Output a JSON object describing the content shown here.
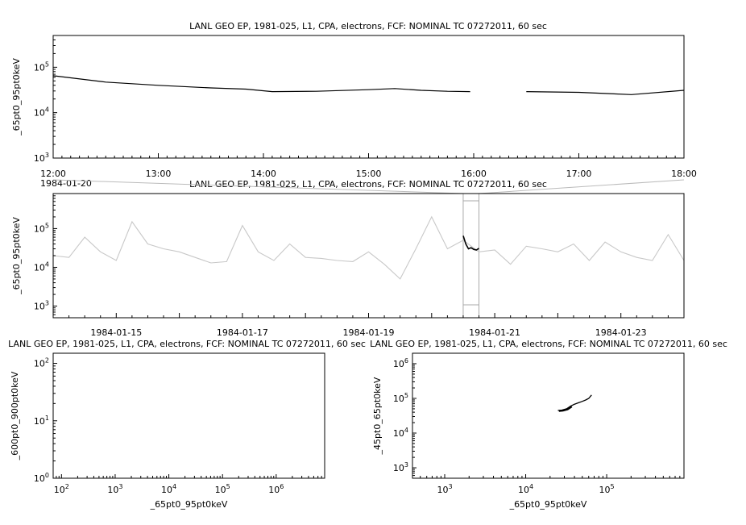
{
  "chart_data": [
    {
      "id": "top",
      "type": "line",
      "title": "LANL GEO EP, 1981-025, L1, CPA, electrons, FCF: NOMINAL TC 07272011, 60 sec",
      "ylabel": "_65pt0_95pt0keV",
      "xlabel": "",
      "yscale": "log",
      "ylim": [
        1000,
        500000
      ],
      "y_tick_labels": [
        "10^3",
        "10^4",
        "10^5"
      ],
      "xlim": [
        "1984-01-20T12:00",
        "1984-01-20T18:00"
      ],
      "x_tick_labels": [
        "12:00",
        "13:00",
        "14:00",
        "15:00",
        "16:00",
        "17:00",
        "18:00"
      ],
      "x_date_label": "1984-01-20",
      "grid": false,
      "series": [
        {
          "color": "#000000",
          "x": [
            "1984-01-20T12:00",
            "1984-01-20T12:30",
            "1984-01-20T13:00",
            "1984-01-20T13:30",
            "1984-01-20T13:50",
            "1984-01-20T14:05",
            "1984-01-20T14:30",
            "1984-01-20T15:00",
            "1984-01-20T15:15",
            "1984-01-20T15:30",
            "1984-01-20T15:45",
            "1984-01-20T15:58",
            "1984-01-20T16:00",
            "1984-01-20T16:30",
            "1984-01-20T17:00",
            "1984-01-20T17:30",
            "1984-01-20T18:00"
          ],
          "y": [
            65000,
            47000,
            40000,
            35000,
            33000,
            29000,
            29500,
            32000,
            34000,
            31000,
            29500,
            29000,
            null,
            29000,
            28000,
            25000,
            31000
          ]
        }
      ]
    },
    {
      "id": "middle",
      "type": "line",
      "title": "LANL GEO EP, 1981-025, L1, CPA, electrons, FCF: NOMINAL TC 07272011, 60 sec",
      "ylabel": "_65pt0_95pt0keV",
      "xlabel": "",
      "yscale": "log",
      "ylim": [
        500,
        800000
      ],
      "y_tick_labels": [
        "10^3",
        "10^4",
        "10^5"
      ],
      "xlim": [
        "1984-01-14",
        "1984-01-24"
      ],
      "x_tick_labels": [
        "1984-01-15",
        "1984-01-17",
        "1984-01-19",
        "1984-01-21",
        "1984-01-23"
      ],
      "highlight_window": [
        "1984-01-20T12:00",
        "1984-01-20T18:00"
      ],
      "grid": false,
      "series": [
        {
          "color": "#c8c8c8",
          "x": [
            "1984-01-14T00:00",
            "1984-01-14T06:00",
            "1984-01-14T12:00",
            "1984-01-14T18:00",
            "1984-01-15T00:00",
            "1984-01-15T06:00",
            "1984-01-15T12:00",
            "1984-01-15T18:00",
            "1984-01-16T00:00",
            "1984-01-16T06:00",
            "1984-01-16T12:00",
            "1984-01-16T18:00",
            "1984-01-17T00:00",
            "1984-01-17T06:00",
            "1984-01-17T12:00",
            "1984-01-17T18:00",
            "1984-01-18T00:00",
            "1984-01-18T06:00",
            "1984-01-18T12:00",
            "1984-01-18T18:00",
            "1984-01-19T00:00",
            "1984-01-19T06:00",
            "1984-01-19T12:00",
            "1984-01-19T18:00",
            "1984-01-20T00:00",
            "1984-01-20T06:00",
            "1984-01-20T12:00",
            "1984-01-20T18:00",
            "1984-01-21T00:00",
            "1984-01-21T06:00",
            "1984-01-21T12:00",
            "1984-01-21T18:00",
            "1984-01-22T00:00",
            "1984-01-22T06:00",
            "1984-01-22T12:00",
            "1984-01-22T18:00",
            "1984-01-23T00:00",
            "1984-01-23T06:00",
            "1984-01-23T12:00",
            "1984-01-23T18:00",
            "1984-01-24T00:00"
          ],
          "y": [
            20000,
            18000,
            60000,
            25000,
            15000,
            150000,
            40000,
            30000,
            25000,
            18000,
            13000,
            14000,
            120000,
            25000,
            15000,
            40000,
            18000,
            17000,
            15000,
            14000,
            25000,
            12000,
            5000,
            30000,
            200000,
            30000,
            50000,
            25000,
            28000,
            12000,
            35000,
            30000,
            25000,
            40000,
            15000,
            45000,
            25000,
            18000,
            15000,
            70000,
            15000
          ]
        },
        {
          "color": "#000000",
          "x": [
            "1984-01-20T12:00",
            "1984-01-20T13:00",
            "1984-01-20T14:00",
            "1984-01-20T15:00",
            "1984-01-20T16:00",
            "1984-01-20T17:00",
            "1984-01-20T18:00"
          ],
          "y": [
            65000,
            40000,
            30000,
            32000,
            29000,
            28000,
            31000
          ]
        }
      ]
    },
    {
      "id": "bottom-left",
      "type": "scatter",
      "title": "LANL GEO EP, 1981-025, L1, CPA, electrons, FCF: NOMINAL TC 07272011, 60 sec",
      "xlabel": "_65pt0_95pt0keV",
      "ylabel": "_600pt0_900pt0keV",
      "xscale": "log",
      "yscale": "log",
      "xlim": [
        70,
        8000000
      ],
      "ylim": [
        1,
        150
      ],
      "x_tick_labels": [
        "10^2",
        "10^3",
        "10^4",
        "10^5",
        "10^6"
      ],
      "y_tick_labels": [
        "10^0",
        "10^1",
        "10^2"
      ],
      "grid": false,
      "series": []
    },
    {
      "id": "bottom-right",
      "type": "line",
      "title": "LANL GEO EP, 1981-025, L1, CPA, electrons, FCF: NOMINAL TC 07272011, 60 sec",
      "xlabel": "_65pt0_95pt0keV",
      "ylabel": "_45pt0_65pt0keV",
      "xscale": "log",
      "yscale": "log",
      "xlim": [
        400,
        900000
      ],
      "ylim": [
        500,
        2000000
      ],
      "x_tick_labels": [
        "10^3",
        "10^4",
        "10^5"
      ],
      "y_tick_labels": [
        "10^3",
        "10^4",
        "10^5",
        "10^6"
      ],
      "grid": false,
      "series": [
        {
          "color": "#000000",
          "x": [
            25000,
            28000,
            32000,
            36000,
            40000,
            45000,
            50000,
            55000,
            60000,
            65000
          ],
          "y": [
            45000,
            46000,
            50000,
            60000,
            68000,
            75000,
            82000,
            90000,
            100000,
            125000
          ]
        }
      ]
    }
  ]
}
